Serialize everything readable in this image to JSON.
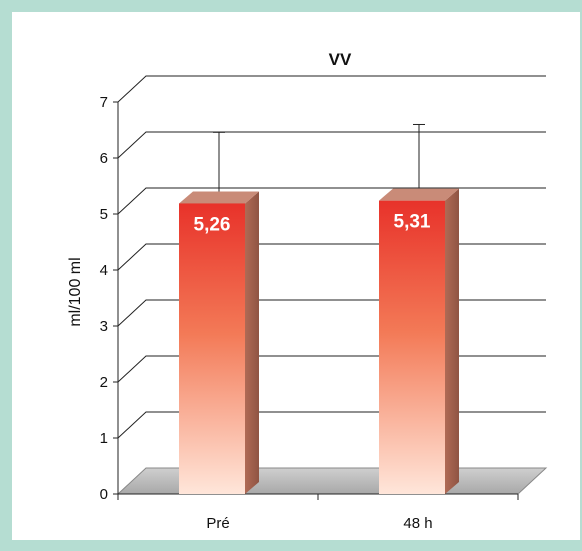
{
  "chart_data": {
    "type": "bar",
    "title": "VV",
    "xlabel": "",
    "ylabel": "ml/100 ml",
    "categories": [
      "Pré",
      "48 h"
    ],
    "values": [
      5.26,
      5.31
    ],
    "data_labels": [
      "5,26",
      "5,31"
    ],
    "error_upper": [
      6.53,
      6.67
    ],
    "ylim": [
      0,
      7
    ],
    "yticks": [
      "0",
      "1",
      "2",
      "3",
      "4",
      "5",
      "6",
      "7"
    ],
    "grid": true,
    "legend": "none",
    "style": "3d",
    "colors": {
      "bar_top": "#e8322a",
      "bar_bottom": "#ffe3d6",
      "bar_side": "#a2614f",
      "bar_cap": "#c98b78",
      "floor": "#b9b9b9",
      "background": "#b5ddd2"
    }
  }
}
